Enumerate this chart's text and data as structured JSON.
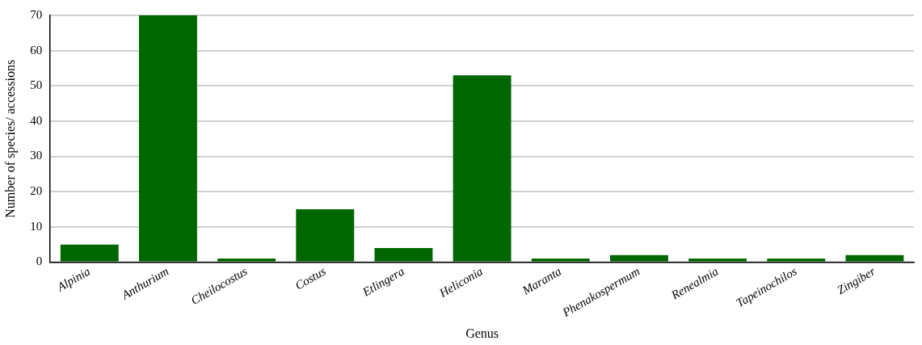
{
  "chart_data": {
    "type": "bar",
    "xlabel": "Genus",
    "ylabel": "Number of species/ accessions",
    "categories": [
      "Alpinia",
      "Anthurium",
      "Cheilocostus",
      "Costus",
      "Etlingera",
      "Heliconia",
      "Maranta",
      "Phenakospermum",
      "Renealmia",
      "Tapeinochilos",
      "Zingiber"
    ],
    "values": [
      5,
      70,
      1,
      15,
      4,
      53,
      1,
      2,
      1,
      1,
      2
    ],
    "color": "#006600",
    "ylim": [
      0,
      70
    ],
    "yticks": [
      0,
      10,
      20,
      30,
      40,
      50,
      60,
      70
    ],
    "grid": "y",
    "legend": false
  }
}
